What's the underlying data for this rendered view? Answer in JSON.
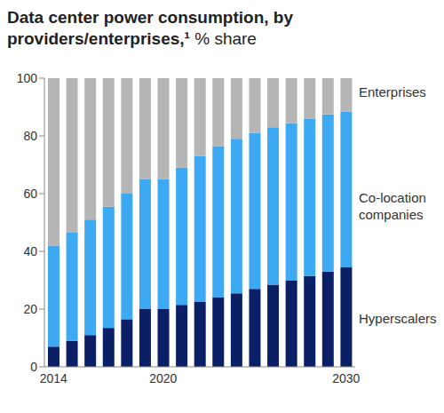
{
  "chart_data": {
    "type": "bar",
    "title": "Data center power consumption, by providers/enterprises,¹",
    "subtitle": "% share",
    "categories": [
      "2014",
      null,
      null,
      null,
      null,
      null,
      "2020",
      null,
      null,
      null,
      null,
      null,
      null,
      null,
      null,
      null,
      "2030"
    ],
    "series": [
      {
        "name": "Hyperscalers",
        "color": "#0b1f66",
        "values": [
          7,
          9,
          11,
          13.5,
          16.5,
          20,
          20,
          21.5,
          22.5,
          24,
          25.5,
          27,
          28.5,
          30,
          31.5,
          33,
          34.5
        ]
      },
      {
        "name": "Co-location companies",
        "color": "#3da9f2",
        "values": [
          35,
          37.5,
          40,
          42,
          43.5,
          45,
          45,
          47.5,
          50.5,
          52.5,
          53.5,
          54,
          54.5,
          54.5,
          54.5,
          54.5,
          54
        ]
      },
      {
        "name": "Enterprises",
        "color": "#b5b5b5",
        "values": [
          58,
          53.5,
          49,
          44.5,
          40,
          35,
          35,
          31,
          27,
          23.5,
          21,
          19,
          17,
          15.5,
          14,
          12.5,
          11.5
        ]
      }
    ],
    "ylim": [
      0,
      100
    ],
    "yticks": [
      0,
      20,
      40,
      60,
      80,
      100
    ],
    "stacked": true,
    "grid": false
  }
}
